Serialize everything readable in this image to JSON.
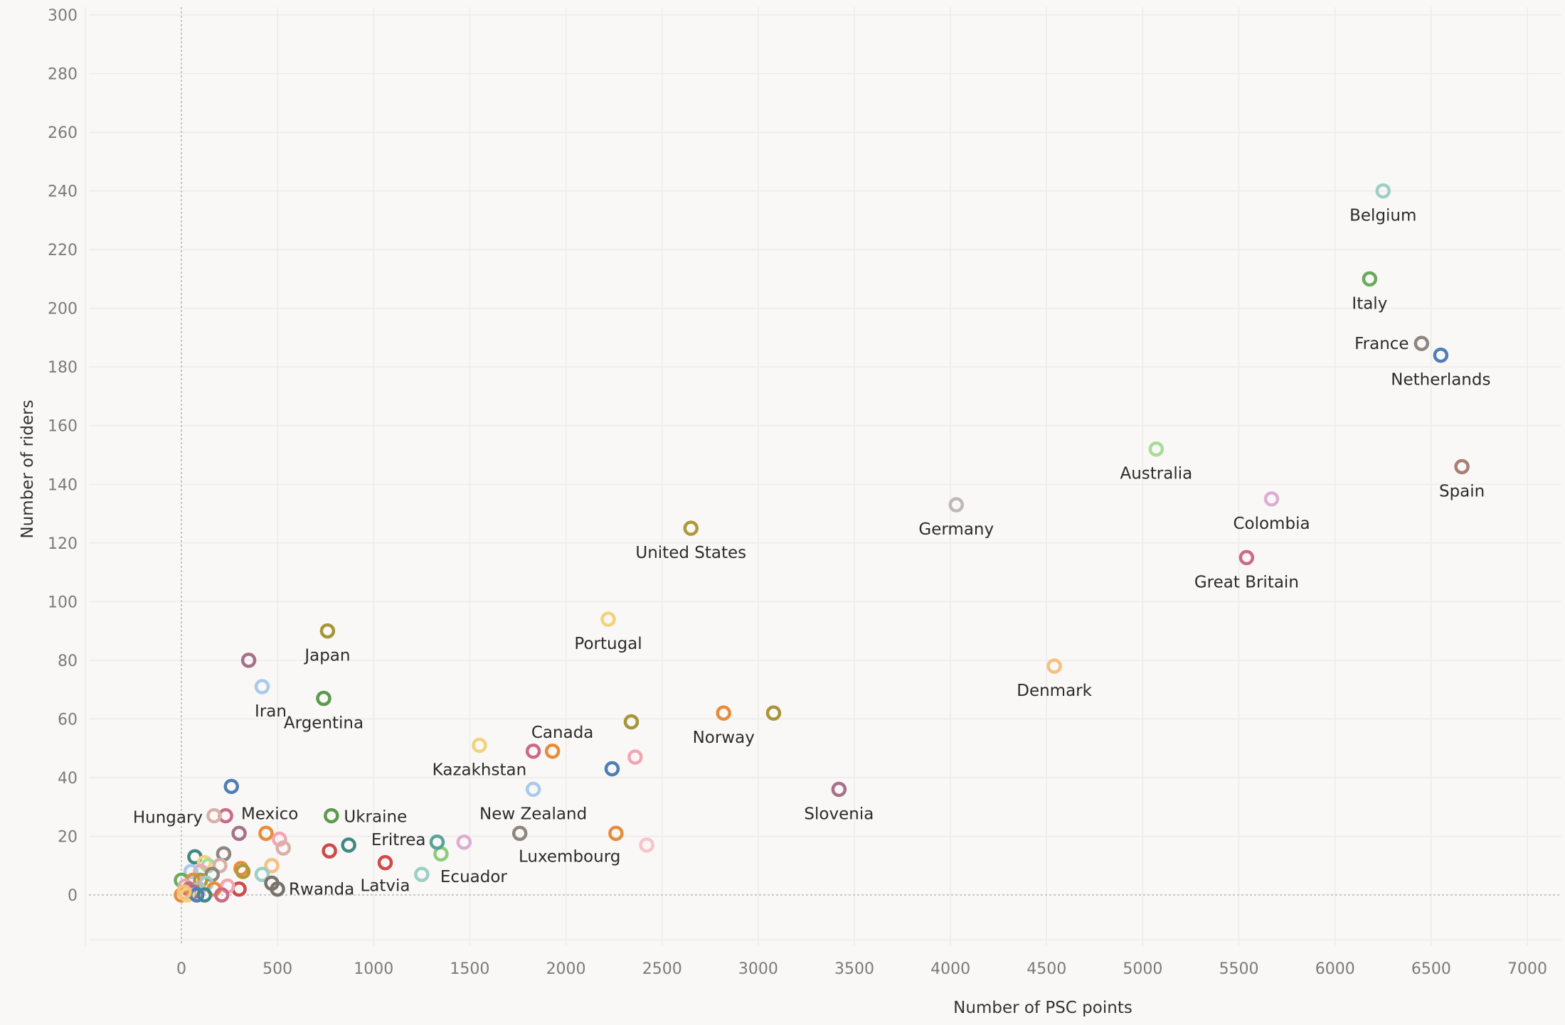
{
  "chart_data": {
    "type": "scatter",
    "xlabel": "Number of PSC points",
    "ylabel": "Number of riders",
    "xlim": [
      -500,
      7200
    ],
    "ylim": [
      -18,
      303
    ],
    "xticks": [
      0,
      500,
      1000,
      1500,
      2000,
      2500,
      3000,
      3500,
      4000,
      4500,
      5000,
      5500,
      6000,
      6500,
      7000
    ],
    "yticks": [
      0,
      20,
      40,
      60,
      80,
      100,
      120,
      140,
      160,
      180,
      200,
      220,
      240,
      260,
      280,
      300
    ],
    "grid": true,
    "legend": "none",
    "points": [
      {
        "label": "Belgium",
        "x": 6250,
        "y": 240,
        "color": "#9ccfc6"
      },
      {
        "label": "Italy",
        "x": 6180,
        "y": 210,
        "color": "#6aab5c"
      },
      {
        "label": "France",
        "x": 6450,
        "y": 188,
        "color": "#8d8580"
      },
      {
        "label": "Netherlands",
        "x": 6550,
        "y": 184,
        "color": "#4f7db5"
      },
      {
        "label": "Australia",
        "x": 5070,
        "y": 152,
        "color": "#a9dc98"
      },
      {
        "label": "Spain",
        "x": 6660,
        "y": 146,
        "color": "#a87f72"
      },
      {
        "label": "Colombia",
        "x": 5670,
        "y": 135,
        "color": "#dcaed4"
      },
      {
        "label": "Germany",
        "x": 4030,
        "y": 133,
        "color": "#bdbab6"
      },
      {
        "label": "United States",
        "x": 2650,
        "y": 125,
        "color": "#ad9a3c"
      },
      {
        "label": "Great Britain",
        "x": 5540,
        "y": 115,
        "color": "#cc6a86"
      },
      {
        "label": "Portugal",
        "x": 2220,
        "y": 94,
        "color": "#f2d27c"
      },
      {
        "label": "Japan",
        "x": 760,
        "y": 90,
        "color": "#a89538"
      },
      {
        "label": "Denmark",
        "x": 4540,
        "y": 78,
        "color": "#f7bf80"
      },
      {
        "label": "Iran",
        "x": 420,
        "y": 71,
        "color": "#a8cbeb"
      },
      {
        "label": "Argentina",
        "x": 740,
        "y": 67,
        "color": "#5c9a4e"
      },
      {
        "label": "Norway",
        "x": 2820,
        "y": 62,
        "color": "#e88c3a"
      },
      {
        "label": "Canada",
        "x": 1930,
        "y": 49,
        "color": "#e88c3a"
      },
      {
        "label": "Kazakhstan",
        "x": 1550,
        "y": 51,
        "color": "#f2d27c"
      },
      {
        "label": "New Zealand",
        "x": 1830,
        "y": 36,
        "color": "#a8cbeb"
      },
      {
        "label": "Slovenia",
        "x": 3420,
        "y": 36,
        "color": "#a8708c"
      },
      {
        "label": "Mexico",
        "x": 230,
        "y": 27,
        "color": "#cc6a86"
      },
      {
        "label": "Hungary",
        "x": 170,
        "y": 27,
        "color": "#d8b0aa"
      },
      {
        "label": "Ukraine",
        "x": 780,
        "y": 27,
        "color": "#5c9a4e"
      },
      {
        "label": "Luxembourg",
        "x": 1760,
        "y": 21,
        "color": "#8d8580"
      },
      {
        "label": "Eritrea",
        "x": 870,
        "y": 17,
        "color": "#3f8a82"
      },
      {
        "label": "Ecuador",
        "x": 1350,
        "y": 14,
        "color": "#8ccd78"
      },
      {
        "label": "Latvia",
        "x": 1060,
        "y": 11,
        "color": "#cf4a4a"
      },
      {
        "label": "Rwanda",
        "x": 500,
        "y": 2,
        "color": "#7a736c"
      },
      {
        "label": "",
        "x": 3080,
        "y": 62,
        "color": "#a89538"
      },
      {
        "label": "",
        "x": 2340,
        "y": 59,
        "color": "#a89538"
      },
      {
        "label": "",
        "x": 1830,
        "y": 49,
        "color": "#cc6a86"
      },
      {
        "label": "",
        "x": 2360,
        "y": 47,
        "color": "#f2a5b3"
      },
      {
        "label": "",
        "x": 2240,
        "y": 43,
        "color": "#4f7db5"
      },
      {
        "label": "",
        "x": 350,
        "y": 80,
        "color": "#a8708c"
      },
      {
        "label": "",
        "x": 260,
        "y": 37,
        "color": "#4f7db5"
      },
      {
        "label": "",
        "x": 300,
        "y": 21,
        "color": "#a8708c"
      },
      {
        "label": "",
        "x": 440,
        "y": 21,
        "color": "#e88c3a"
      },
      {
        "label": "",
        "x": 510,
        "y": 19,
        "color": "#f2a5b3"
      },
      {
        "label": "",
        "x": 530,
        "y": 16,
        "color": "#d8b0aa"
      },
      {
        "label": "",
        "x": 770,
        "y": 15,
        "color": "#cf4a4a"
      },
      {
        "label": "",
        "x": 1470,
        "y": 18,
        "color": "#dcaed4"
      },
      {
        "label": "",
        "x": 1330,
        "y": 18,
        "color": "#5aa39a"
      },
      {
        "label": "",
        "x": 2260,
        "y": 21,
        "color": "#e88c3a"
      },
      {
        "label": "",
        "x": 2420,
        "y": 17,
        "color": "#f7c3cc"
      },
      {
        "label": "",
        "x": 1250,
        "y": 7,
        "color": "#9ccfc6"
      },
      {
        "label": "",
        "x": 470,
        "y": 10,
        "color": "#f7bf80"
      },
      {
        "label": "",
        "x": 420,
        "y": 7,
        "color": "#9ccfc6"
      },
      {
        "label": "",
        "x": 470,
        "y": 4,
        "color": "#7a736c"
      },
      {
        "label": "",
        "x": 300,
        "y": 2,
        "color": "#cf4a4a"
      },
      {
        "label": "",
        "x": 220,
        "y": 14,
        "color": "#8d8580"
      },
      {
        "label": "",
        "x": 310,
        "y": 9,
        "color": "#e88c3a"
      },
      {
        "label": "",
        "x": 320,
        "y": 8,
        "color": "#ad9a3c"
      },
      {
        "label": "",
        "x": 70,
        "y": 13,
        "color": "#3f8a82"
      },
      {
        "label": "",
        "x": 120,
        "y": 11,
        "color": "#f2d27c"
      },
      {
        "label": "",
        "x": 140,
        "y": 10,
        "color": "#a9dc98"
      },
      {
        "label": "",
        "x": 200,
        "y": 10,
        "color": "#d8b0aa"
      },
      {
        "label": "",
        "x": 100,
        "y": 8,
        "color": "#f2a5b3"
      },
      {
        "label": "",
        "x": 50,
        "y": 8,
        "color": "#a8cbeb"
      },
      {
        "label": "",
        "x": 160,
        "y": 7,
        "color": "#8d8580"
      },
      {
        "label": "",
        "x": 0,
        "y": 5,
        "color": "#6aab5c"
      },
      {
        "label": "",
        "x": 60,
        "y": 5,
        "color": "#e88c3a"
      },
      {
        "label": "",
        "x": 100,
        "y": 5,
        "color": "#ad9a3c"
      },
      {
        "label": "",
        "x": 130,
        "y": 4,
        "color": "#9ccfc6"
      },
      {
        "label": "",
        "x": 240,
        "y": 3,
        "color": "#f2a5b3"
      },
      {
        "label": "",
        "x": 20,
        "y": 3,
        "color": "#d8b0aa"
      },
      {
        "label": "",
        "x": 170,
        "y": 2,
        "color": "#e88c3a"
      },
      {
        "label": "",
        "x": 40,
        "y": 2,
        "color": "#cc6a86"
      },
      {
        "label": "",
        "x": 90,
        "y": 2,
        "color": "#bdbab6"
      },
      {
        "label": "",
        "x": 60,
        "y": 1,
        "color": "#a8708c"
      },
      {
        "label": "",
        "x": 210,
        "y": 0,
        "color": "#cc6a86"
      },
      {
        "label": "",
        "x": 120,
        "y": 0,
        "color": "#3f8a82"
      },
      {
        "label": "",
        "x": 0,
        "y": 0,
        "color": "#e88c3a"
      },
      {
        "label": "",
        "x": 30,
        "y": 0,
        "color": "#f2d27c"
      },
      {
        "label": "",
        "x": 80,
        "y": 0,
        "color": "#4f7db5"
      },
      {
        "label": "",
        "x": 15,
        "y": 1,
        "color": "#f7bf80"
      }
    ]
  }
}
